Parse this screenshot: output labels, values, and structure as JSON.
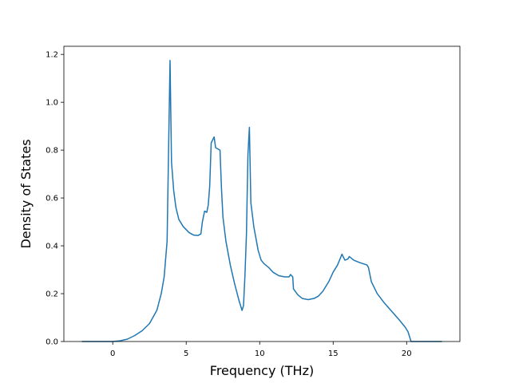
{
  "chart_data": {
    "type": "line",
    "xlabel": "Frequency (THz)",
    "ylabel": "Density of States",
    "xlim": [
      -3.325,
      23.625
    ],
    "ylim": [
      0,
      1.234
    ],
    "xticks": [
      0,
      5,
      10,
      15,
      20
    ],
    "yticks": [
      {
        "value": 0,
        "label": "0.0"
      },
      {
        "value": 0.2,
        "label": "0.2"
      },
      {
        "value": 0.4,
        "label": "0.4"
      },
      {
        "value": 0.6,
        "label": "0.6"
      },
      {
        "value": 0.8,
        "label": "0.8"
      },
      {
        "value": 1.0,
        "label": "1.0"
      },
      {
        "value": 1.2,
        "label": "1.2"
      }
    ],
    "grid": false,
    "series": [
      {
        "color": "#1f77b4",
        "x": [
          -2.1,
          0,
          0.5,
          1,
          1.5,
          2,
          2.5,
          3,
          3.3,
          3.5,
          3.7,
          3.8,
          3.9,
          4.0,
          4.15,
          4.3,
          4.5,
          4.8,
          5.2,
          5.5,
          5.8,
          6.0,
          6.1,
          6.25,
          6.4,
          6.5,
          6.6,
          6.7,
          6.9,
          7.0,
          7.3,
          7.4,
          7.5,
          7.7,
          8.0,
          8.3,
          8.6,
          8.8,
          8.9,
          9.0,
          9.1,
          9.2,
          9.3,
          9.4,
          9.6,
          9.9,
          10.1,
          10.3,
          10.6,
          10.9,
          11.3,
          11.7,
          12.0,
          12.1,
          12.25,
          12.3,
          12.6,
          12.9,
          13.3,
          13.7,
          14.0,
          14.3,
          14.7,
          15.0,
          15.3,
          15.6,
          15.8,
          16.0,
          16.1,
          16.4,
          16.8,
          17.3,
          17.4,
          17.6,
          18.0,
          18.5,
          19.0,
          19.5,
          19.9,
          20.1,
          20.3,
          21,
          22.4
        ],
        "values": [
          0,
          0,
          0.003,
          0.01,
          0.025,
          0.045,
          0.075,
          0.13,
          0.2,
          0.27,
          0.42,
          0.8,
          1.175,
          0.75,
          0.63,
          0.56,
          0.51,
          0.48,
          0.455,
          0.445,
          0.443,
          0.45,
          0.5,
          0.545,
          0.54,
          0.57,
          0.65,
          0.83,
          0.855,
          0.81,
          0.8,
          0.64,
          0.52,
          0.42,
          0.32,
          0.24,
          0.17,
          0.13,
          0.15,
          0.28,
          0.45,
          0.78,
          0.895,
          0.58,
          0.48,
          0.38,
          0.34,
          0.325,
          0.31,
          0.29,
          0.275,
          0.27,
          0.27,
          0.28,
          0.27,
          0.22,
          0.195,
          0.18,
          0.175,
          0.18,
          0.19,
          0.21,
          0.25,
          0.29,
          0.32,
          0.365,
          0.34,
          0.345,
          0.355,
          0.34,
          0.33,
          0.32,
          0.31,
          0.25,
          0.2,
          0.16,
          0.125,
          0.09,
          0.06,
          0.04,
          0,
          0,
          0
        ]
      }
    ]
  }
}
